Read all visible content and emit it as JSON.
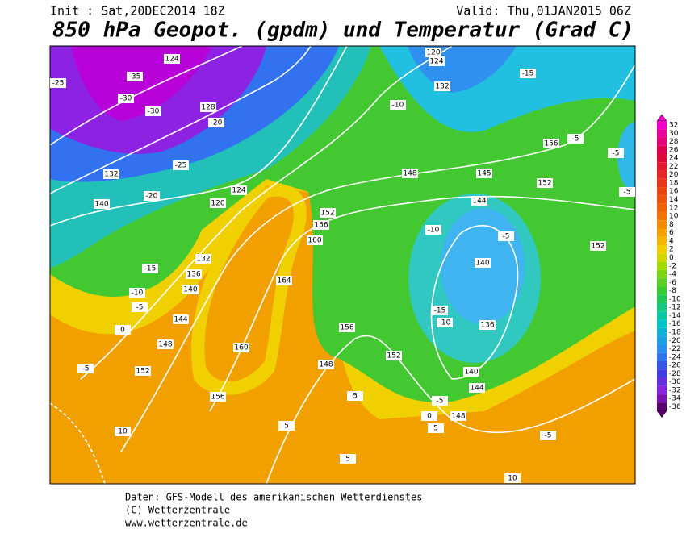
{
  "header": {
    "init": "Init : Sat,20DEC2014 18Z",
    "valid": "Valid: Thu,01JAN2015 06Z",
    "title": "850 hPa Geopot. (gpdm) und Temperatur (Grad C)"
  },
  "colorbar": {
    "labels": [
      32,
      30,
      28,
      26,
      24,
      22,
      20,
      18,
      16,
      14,
      12,
      10,
      8,
      6,
      4,
      2,
      0,
      -2,
      -4,
      -6,
      -8,
      -10,
      -12,
      -14,
      -16,
      -18,
      -20,
      -22,
      -24,
      -26,
      -28,
      -30,
      -32,
      -34,
      -36
    ]
  },
  "contour_labels": [
    124,
    -35,
    -30,
    -30,
    -25,
    128,
    -20,
    132,
    -25,
    -20,
    140,
    120,
    124,
    132,
    136,
    140,
    -15,
    -10,
    -5,
    0,
    144,
    148,
    152,
    -5,
    156,
    160,
    164,
    160,
    156,
    152,
    148,
    145,
    152,
    156,
    -5,
    -15,
    120,
    124,
    132,
    -10,
    140,
    144,
    -10,
    -5,
    152,
    156,
    148,
    152,
    -15,
    -10,
    136,
    140,
    144,
    148,
    -5,
    0,
    5,
    5,
    5,
    5,
    -5,
    10,
    10,
    -5,
    -5
  ],
  "footer": [
    "Daten: GFS-Modell des amerikanischen Wetterdienstes",
    "(C) Wetterzentrale",
    "www.wetterzentrale.de"
  ]
}
